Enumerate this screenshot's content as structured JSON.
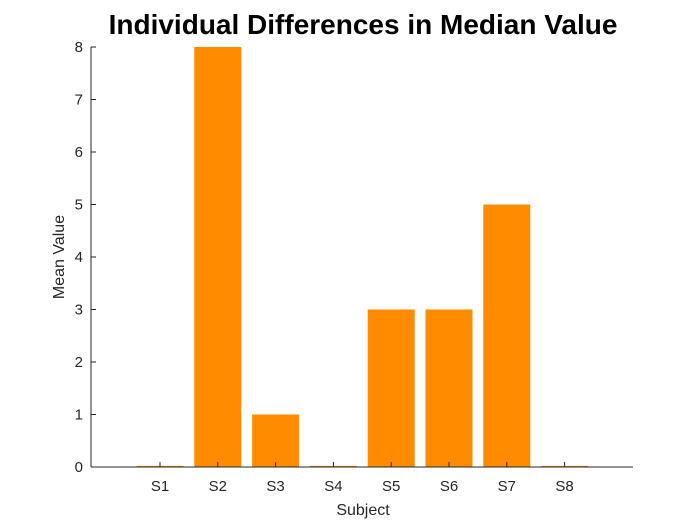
{
  "chart_data": {
    "type": "bar",
    "title": "Individual Differences in Median Value",
    "xlabel": "Subject",
    "ylabel": "Mean Value",
    "categories": [
      "S1",
      "S2",
      "S3",
      "S4",
      "S5",
      "S6",
      "S7",
      "S8"
    ],
    "values": [
      0,
      8,
      1,
      0,
      3,
      3,
      5,
      0
    ],
    "ylim": [
      0,
      8
    ],
    "yticks": [
      "0",
      "1",
      "2",
      "3",
      "4",
      "5",
      "6",
      "7",
      "8"
    ],
    "grid": false,
    "bar_color": "#FF8C00",
    "axis_color": "#262626"
  }
}
